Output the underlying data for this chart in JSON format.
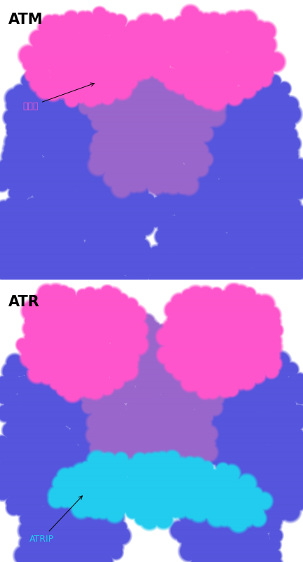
{
  "title_atm": "ATM",
  "title_atr": "ATR",
  "label_kinase": "키나제",
  "label_atrip": "ATRIP",
  "color_kinase": "#FF55CC",
  "color_other": "#9966CC",
  "color_blue": "#5555DD",
  "color_atrip": "#22CCEE",
  "color_bg": "#FFFFFF",
  "figsize": [
    4.32,
    8.0
  ],
  "dpi": 100
}
